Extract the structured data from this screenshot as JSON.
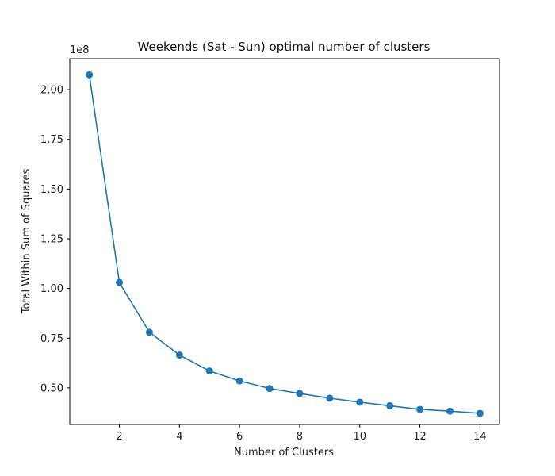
{
  "chart_data": {
    "type": "line",
    "title": "Weekends (Sat - Sun) optimal number of clusters",
    "xlabel": "Number of Clusters",
    "ylabel": "Total Within Sum of Squares",
    "y_offset_label": "1e8",
    "xlim": [
      0.35,
      14.65
    ],
    "ylim": [
      0.316,
      2.156
    ],
    "x_ticks": [
      2,
      4,
      6,
      8,
      10,
      12,
      14
    ],
    "x_tick_labels": [
      "2",
      "4",
      "6",
      "8",
      "10",
      "12",
      "14"
    ],
    "y_ticks": [
      0.5,
      0.75,
      1.0,
      1.25,
      1.5,
      1.75,
      2.0
    ],
    "y_tick_labels": [
      "0.50",
      "0.75",
      "1.00",
      "1.25",
      "1.50",
      "1.75",
      "2.00"
    ],
    "grid": false,
    "series": [
      {
        "color": "#1f77b4",
        "marker": "circle",
        "x": [
          1,
          2,
          3,
          4,
          5,
          6,
          7,
          8,
          9,
          10,
          11,
          12,
          13,
          14
        ],
        "y": [
          2.075,
          1.03,
          0.78,
          0.665,
          0.585,
          0.535,
          0.497,
          0.472,
          0.448,
          0.428,
          0.41,
          0.392,
          0.383,
          0.372
        ]
      }
    ]
  }
}
